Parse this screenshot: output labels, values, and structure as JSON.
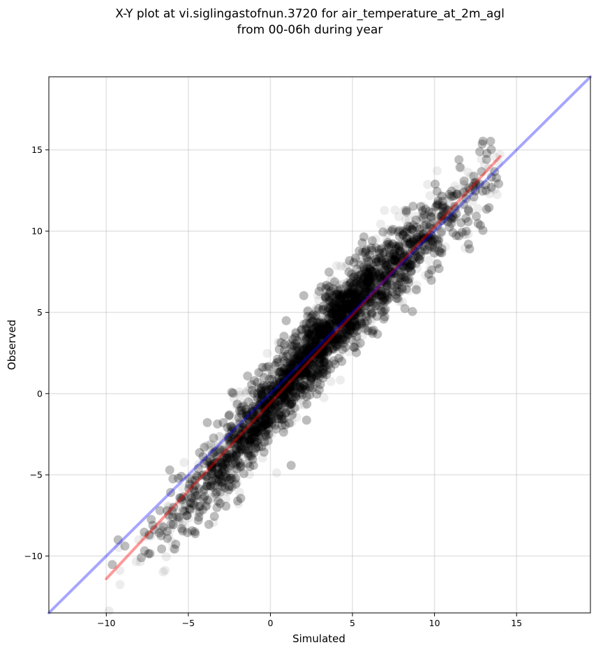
{
  "chart_data": {
    "type": "scatter",
    "title_lines": [
      "X-Y plot at vi.siglingastofnun.3720 for air_temperature_at_2m_agl",
      "from 00-06h during year"
    ],
    "xlabel": "Simulated",
    "ylabel": "Observed",
    "xlim": [
      -13.5,
      19.5
    ],
    "ylim": [
      -13.5,
      19.5
    ],
    "xticks": [
      -10,
      -5,
      0,
      5,
      10,
      15
    ],
    "yticks": [
      -10,
      -5,
      0,
      5,
      10,
      15
    ],
    "xtick_labels": [
      "−10",
      "−5",
      "0",
      "5",
      "10",
      "15"
    ],
    "ytick_labels": [
      "−10",
      "−5",
      "0",
      "5",
      "10",
      "15"
    ],
    "grid": true,
    "point_color": "#000000",
    "point_opacity": 0.07,
    "point_count_estimate": 8000,
    "point_distribution": {
      "x_range": [
        -10,
        14
      ],
      "relation": "observed ≈ 1.08 × simulated − 0.6",
      "spread_sd": 1.1
    },
    "series": [
      {
        "name": "",
        "kind": "regression-line",
        "color": "#ff0000",
        "opacity": 0.4,
        "x": [
          -10,
          14
        ],
        "y": [
          -11.4,
          14.6
        ]
      },
      {
        "name": "",
        "kind": "identity-line",
        "color": "#0000ff",
        "opacity": 0.35,
        "x": [
          -13.5,
          19.5
        ],
        "y": [
          -13.5,
          19.5
        ]
      }
    ]
  }
}
